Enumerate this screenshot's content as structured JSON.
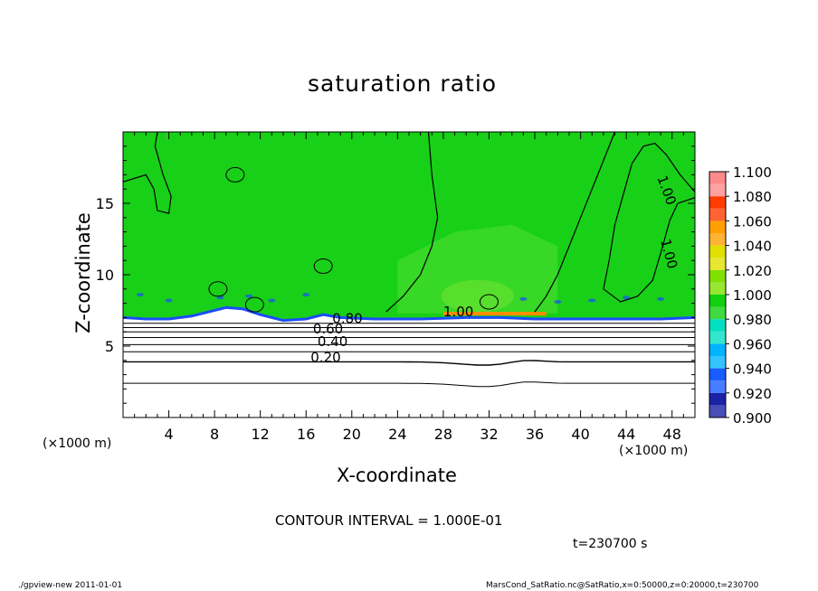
{
  "chart_data": {
    "type": "heatmap",
    "title": "saturation ratio",
    "xlabel": "X-coordinate",
    "ylabel": "Z-coordinate",
    "x_unit_label": "(×1000 m)",
    "xlim": [
      0,
      50
    ],
    "ylim": [
      0,
      20
    ],
    "x_ticks": [
      4,
      8,
      12,
      16,
      20,
      24,
      28,
      32,
      36,
      40,
      44,
      48
    ],
    "y_ticks": [
      5,
      10,
      15
    ],
    "colorbar": {
      "levels": [
        "0.900",
        "0.920",
        "0.940",
        "0.960",
        "0.980",
        "1.000",
        "1.020",
        "1.040",
        "1.060",
        "1.080",
        "1.100"
      ],
      "colors": [
        "#6a00b8",
        "#1a22a6",
        "#1a5cff",
        "#00b4ff",
        "#00e0c0",
        "#10d010",
        "#80e000",
        "#e0e000",
        "#ffa000",
        "#ff3c00",
        "#ff8a8a"
      ]
    },
    "contour_labels": [
      "0.20",
      "0.40",
      "0.60",
      "0.80",
      "1.00",
      "1.00",
      "1.00"
    ],
    "contour_interval_text": "CONTOUR INTERVAL = 1.000E-01",
    "time_text": "t=230700  s"
  },
  "footer": {
    "left": "./gpview-new   2011-01-01",
    "right": "MarsCond_SatRatio.nc@SatRatio,x=0:50000,z=0:20000,t=230700"
  },
  "colors": {
    "field_main": "#18d018",
    "field_light": "#44dc2c",
    "field_warm": "#60e030",
    "field_blue": "#1a4cff",
    "field_low": "#ffffff"
  }
}
